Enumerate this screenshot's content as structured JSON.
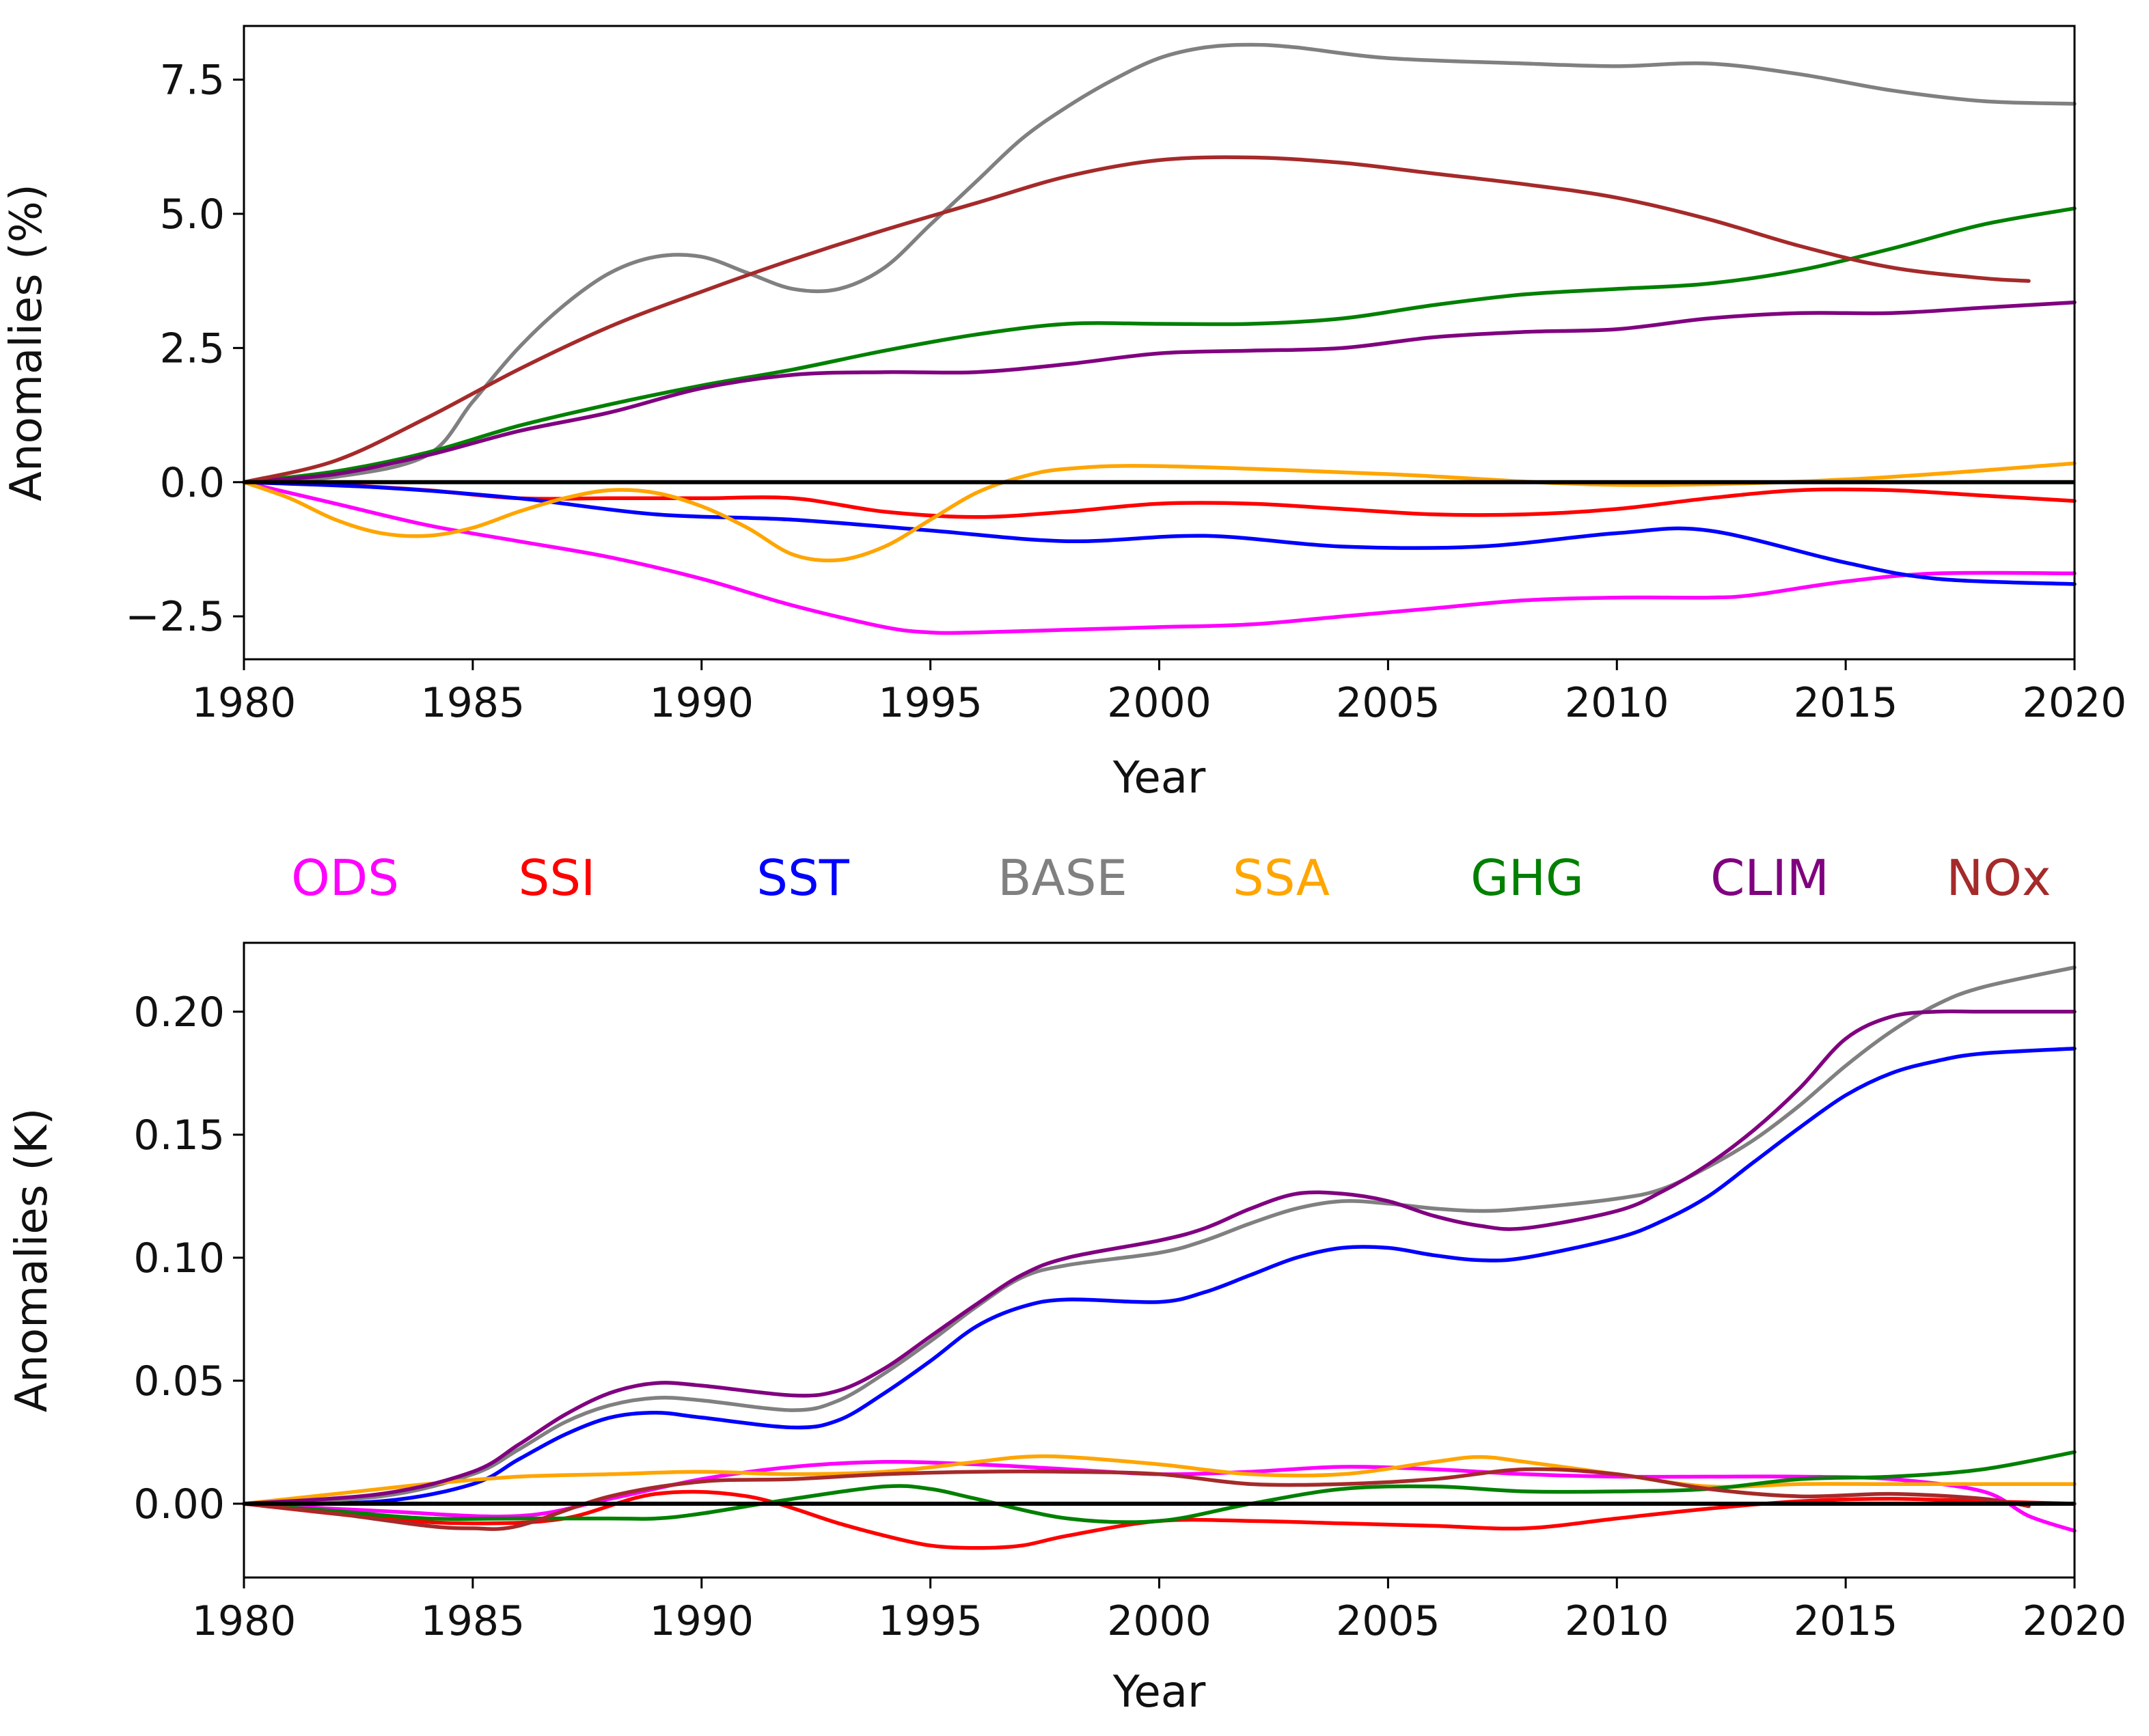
{
  "colors": {
    "ODS": "#ff00ff",
    "SSI": "#ff0000",
    "SST": "#0000ff",
    "BASE": "#808080",
    "SSA": "#ffa500",
    "GHG": "#008000",
    "CLIM": "#800080",
    "NOx": "#a52a2a"
  },
  "legend": {
    "items": [
      {
        "name": "ODS",
        "label": "ODS"
      },
      {
        "name": "SSI",
        "label": "SSI"
      },
      {
        "name": "SST",
        "label": "SST"
      },
      {
        "name": "BASE",
        "label": "BASE"
      },
      {
        "name": "SSA",
        "label": "SSA"
      },
      {
        "name": "GHG",
        "label": "GHG"
      },
      {
        "name": "CLIM",
        "label": "CLIM"
      },
      {
        "name": "NOx",
        "label": "NOx"
      }
    ]
  },
  "chart_data": [
    {
      "type": "line",
      "title": "",
      "xlabel": "Year",
      "ylabel": "Anomalies (%)",
      "xlim": [
        1980,
        2020
      ],
      "ylim": [
        -3.3,
        8.5
      ],
      "xticks": [
        1980,
        1985,
        1990,
        1995,
        2000,
        2005,
        2010,
        2015,
        2020
      ],
      "xtick_labels": [
        "1980",
        "1985",
        "1990",
        "1995",
        "2000",
        "2005",
        "2010",
        "2015",
        "2020"
      ],
      "yticks": [
        -2.5,
        0.0,
        2.5,
        5.0,
        7.5
      ],
      "ytick_labels": [
        "−2.5",
        "0.0",
        "2.5",
        "5.0",
        "7.5"
      ],
      "hline": 0,
      "series": [
        {
          "name": "ODS",
          "x": [
            1980,
            1982,
            1984,
            1986,
            1988,
            1990,
            1992,
            1994,
            1995,
            1996,
            1998,
            2000,
            2002,
            2004,
            2006,
            2008,
            2010,
            2012,
            2013,
            2015,
            2017,
            2020
          ],
          "values": [
            0,
            -0.4,
            -0.8,
            -1.1,
            -1.4,
            -1.8,
            -2.3,
            -2.7,
            -2.8,
            -2.8,
            -2.75,
            -2.7,
            -2.65,
            -2.5,
            -2.35,
            -2.2,
            -2.15,
            -2.15,
            -2.1,
            -1.85,
            -1.7,
            -1.7
          ]
        },
        {
          "name": "SSI",
          "x": [
            1980,
            1982,
            1984,
            1986,
            1988,
            1990,
            1992,
            1994,
            1996,
            1998,
            2000,
            2002,
            2004,
            2006,
            2008,
            2010,
            2012,
            2014,
            2016,
            2018,
            2020
          ],
          "values": [
            0,
            -0.05,
            -0.15,
            -0.3,
            -0.3,
            -0.3,
            -0.3,
            -0.55,
            -0.65,
            -0.55,
            -0.4,
            -0.4,
            -0.5,
            -0.6,
            -0.6,
            -0.5,
            -0.3,
            -0.15,
            -0.15,
            -0.25,
            -0.35
          ]
        },
        {
          "name": "SST",
          "x": [
            1980,
            1983,
            1986,
            1989,
            1992,
            1995,
            1998,
            2001,
            2004,
            2007,
            2010,
            2012,
            2015,
            2017,
            2020
          ],
          "values": [
            0,
            -0.1,
            -0.3,
            -0.6,
            -0.7,
            -0.9,
            -1.1,
            -1.0,
            -1.2,
            -1.2,
            -0.95,
            -0.9,
            -1.5,
            -1.8,
            -1.9
          ]
        },
        {
          "name": "BASE",
          "x": [
            1980,
            1982,
            1984,
            1985,
            1986,
            1987,
            1988,
            1989,
            1990,
            1991,
            1992,
            1993,
            1994,
            1995,
            1996,
            1997,
            1998,
            1999,
            2000,
            2001,
            2002,
            2003,
            2005,
            2008,
            2010,
            2012,
            2014,
            2016,
            2018,
            2020
          ],
          "values": [
            0,
            0.1,
            0.5,
            1.5,
            2.5,
            3.3,
            3.9,
            4.2,
            4.2,
            3.9,
            3.6,
            3.6,
            4.0,
            4.8,
            5.6,
            6.4,
            7.0,
            7.5,
            7.9,
            8.1,
            8.15,
            8.1,
            7.9,
            7.8,
            7.75,
            7.8,
            7.6,
            7.3,
            7.1,
            7.05
          ]
        },
        {
          "name": "SSA",
          "x": [
            1980,
            1981,
            1982,
            1983,
            1984,
            1985,
            1986,
            1987,
            1988,
            1989,
            1990,
            1991,
            1992,
            1993,
            1994,
            1995,
            1996,
            1997,
            1998,
            2000,
            2005,
            2010,
            2015,
            2020
          ],
          "values": [
            0,
            -0.3,
            -0.7,
            -0.95,
            -1.0,
            -0.85,
            -0.55,
            -0.3,
            -0.15,
            -0.2,
            -0.45,
            -0.85,
            -1.35,
            -1.45,
            -1.2,
            -0.7,
            -0.2,
            0.1,
            0.25,
            0.3,
            0.15,
            -0.05,
            0.05,
            0.35
          ]
        },
        {
          "name": "GHG",
          "x": [
            1980,
            1982,
            1984,
            1986,
            1988,
            1990,
            1992,
            1994,
            1996,
            1998,
            2000,
            2002,
            2004,
            2006,
            2008,
            2010,
            2012,
            2014,
            2016,
            2018,
            2020
          ],
          "values": [
            0,
            0.2,
            0.55,
            1.05,
            1.45,
            1.8,
            2.1,
            2.45,
            2.75,
            2.95,
            2.95,
            2.95,
            3.05,
            3.3,
            3.5,
            3.6,
            3.7,
            3.95,
            4.35,
            4.8,
            5.1
          ]
        },
        {
          "name": "CLIM",
          "x": [
            1980,
            1982,
            1984,
            1986,
            1988,
            1990,
            1992,
            1994,
            1996,
            1998,
            2000,
            2002,
            2004,
            2006,
            2008,
            2010,
            2012,
            2014,
            2016,
            2018,
            2020
          ],
          "values": [
            0,
            0.15,
            0.5,
            0.95,
            1.3,
            1.75,
            2.0,
            2.05,
            2.05,
            2.2,
            2.4,
            2.45,
            2.5,
            2.7,
            2.8,
            2.85,
            3.05,
            3.15,
            3.15,
            3.25,
            3.35
          ]
        },
        {
          "name": "NOx",
          "x": [
            1980,
            1982,
            1984,
            1986,
            1988,
            1990,
            1992,
            1994,
            1996,
            1998,
            2000,
            2002,
            2004,
            2006,
            2008,
            2010,
            2012,
            2014,
            2016,
            2018,
            2019
          ],
          "values": [
            0,
            0.4,
            1.2,
            2.1,
            2.9,
            3.55,
            4.15,
            4.7,
            5.2,
            5.7,
            6.0,
            6.05,
            5.95,
            5.75,
            5.55,
            5.3,
            4.9,
            4.4,
            4.0,
            3.8,
            3.75
          ]
        }
      ]
    },
    {
      "type": "line",
      "title": "",
      "xlabel": "Year",
      "ylabel": "Anomalies (K)",
      "xlim": [
        1980,
        2020
      ],
      "ylim": [
        -0.03,
        0.228
      ],
      "xticks": [
        1980,
        1985,
        1990,
        1995,
        2000,
        2005,
        2010,
        2015,
        2020
      ],
      "xtick_labels": [
        "1980",
        "1985",
        "1990",
        "1995",
        "2000",
        "2005",
        "2010",
        "2015",
        "2020"
      ],
      "yticks": [
        0.0,
        0.05,
        0.1,
        0.15,
        0.2
      ],
      "ytick_labels": [
        "0.00",
        "0.05",
        "0.10",
        "0.15",
        "0.20"
      ],
      "hline": 0,
      "series": [
        {
          "name": "ODS",
          "x": [
            1980,
            1983,
            1986,
            1988,
            1990,
            1992,
            1994,
            1996,
            1998,
            2000,
            2002,
            2004,
            2006,
            2008,
            2010,
            2012,
            2014,
            2016,
            2018,
            2019,
            2020
          ],
          "values": [
            0,
            -0.003,
            -0.005,
            0.002,
            0.01,
            0.015,
            0.017,
            0.016,
            0.014,
            0.012,
            0.013,
            0.015,
            0.014,
            0.012,
            0.011,
            0.011,
            0.011,
            0.01,
            0.005,
            -0.005,
            -0.011
          ]
        },
        {
          "name": "SSI",
          "x": [
            1980,
            1983,
            1985,
            1987,
            1989,
            1991,
            1993,
            1994,
            1995,
            1996,
            1997,
            1998,
            2000,
            2002,
            2004,
            2006,
            2008,
            2010,
            2012,
            2014,
            2016,
            2018,
            2020
          ],
          "values": [
            0,
            -0.006,
            -0.008,
            -0.006,
            0.004,
            0.003,
            -0.008,
            -0.013,
            -0.017,
            -0.018,
            -0.017,
            -0.013,
            -0.007,
            -0.007,
            -0.008,
            -0.009,
            -0.01,
            -0.006,
            -0.002,
            0.001,
            0.002,
            0.001,
            0
          ]
        },
        {
          "name": "SST",
          "x": [
            1980,
            1983,
            1985,
            1986,
            1987,
            1988,
            1989,
            1990,
            1992,
            1993,
            1994,
            1995,
            1996,
            1997,
            1998,
            2000,
            2001,
            2002,
            2003,
            2004,
            2005,
            2006,
            2007,
            2008,
            2010,
            2011,
            2012,
            2013,
            2014,
            2015,
            2016,
            2017,
            2018,
            2020
          ],
          "values": [
            0,
            0.001,
            0.008,
            0.018,
            0.028,
            0.035,
            0.037,
            0.035,
            0.031,
            0.034,
            0.045,
            0.058,
            0.072,
            0.08,
            0.083,
            0.082,
            0.086,
            0.093,
            0.1,
            0.104,
            0.104,
            0.101,
            0.099,
            0.1,
            0.108,
            0.115,
            0.125,
            0.139,
            0.153,
            0.166,
            0.175,
            0.18,
            0.183,
            0.185
          ]
        },
        {
          "name": "BASE",
          "x": [
            1980,
            1983,
            1985,
            1986,
            1987,
            1988,
            1989,
            1990,
            1992,
            1993,
            1994,
            1995,
            1996,
            1997,
            1998,
            2000,
            2001,
            2002,
            2003,
            2004,
            2005,
            2006,
            2007,
            2008,
            2010,
            2011,
            2012,
            2013,
            2014,
            2015,
            2016,
            2017,
            2018,
            2020
          ],
          "values": [
            0,
            0.003,
            0.012,
            0.022,
            0.033,
            0.04,
            0.043,
            0.042,
            0.038,
            0.042,
            0.053,
            0.066,
            0.08,
            0.092,
            0.097,
            0.102,
            0.107,
            0.114,
            0.12,
            0.123,
            0.122,
            0.12,
            0.119,
            0.12,
            0.124,
            0.128,
            0.137,
            0.148,
            0.162,
            0.178,
            0.192,
            0.203,
            0.21,
            0.218
          ]
        },
        {
          "name": "SSA",
          "x": [
            1980,
            1982,
            1984,
            1986,
            1988,
            1990,
            1992,
            1994,
            1996,
            1997,
            1998,
            2000,
            2002,
            2004,
            2006,
            2007,
            2008,
            2010,
            2012,
            2014,
            2016,
            2018,
            2020
          ],
          "values": [
            0,
            0.004,
            0.008,
            0.011,
            0.012,
            0.013,
            0.012,
            0.013,
            0.017,
            0.019,
            0.019,
            0.016,
            0.012,
            0.012,
            0.017,
            0.019,
            0.017,
            0.012,
            0.007,
            0.008,
            0.008,
            0.008,
            0.008
          ]
        },
        {
          "name": "GHG",
          "x": [
            1980,
            1982,
            1984,
            1986,
            1988,
            1989,
            1990,
            1992,
            1994,
            1995,
            1996,
            1998,
            2000,
            2002,
            2004,
            2006,
            2008,
            2010,
            2012,
            2014,
            2016,
            2018,
            2020
          ],
          "values": [
            0,
            -0.003,
            -0.006,
            -0.006,
            -0.006,
            -0.006,
            -0.004,
            0.002,
            0.007,
            0.006,
            0.002,
            -0.006,
            -0.007,
            0,
            0.006,
            0.007,
            0.005,
            0.005,
            0.006,
            0.01,
            0.011,
            0.014,
            0.021
          ]
        },
        {
          "name": "CLIM",
          "x": [
            1980,
            1983,
            1985,
            1986,
            1987,
            1988,
            1989,
            1990,
            1992,
            1993,
            1994,
            1995,
            1996,
            1997,
            1998,
            2000,
            2001,
            2002,
            2003,
            2004,
            2005,
            2006,
            2007,
            2008,
            2010,
            2011,
            2012,
            2013,
            2014,
            2015,
            2016,
            2017,
            2018,
            2020
          ],
          "values": [
            0,
            0.004,
            0.013,
            0.024,
            0.036,
            0.045,
            0.049,
            0.048,
            0.044,
            0.046,
            0.055,
            0.068,
            0.081,
            0.093,
            0.1,
            0.107,
            0.112,
            0.12,
            0.126,
            0.126,
            0.123,
            0.117,
            0.113,
            0.112,
            0.119,
            0.127,
            0.138,
            0.152,
            0.169,
            0.189,
            0.198,
            0.2,
            0.2,
            0.2
          ]
        },
        {
          "name": "NOx",
          "x": [
            1980,
            1982,
            1984,
            1985,
            1986,
            1988,
            1990,
            1992,
            1994,
            1996,
            1998,
            2000,
            2002,
            2004,
            2006,
            2008,
            2010,
            2012,
            2014,
            2016,
            2018,
            2019
          ],
          "values": [
            0,
            -0.004,
            -0.009,
            -0.01,
            -0.009,
            0.003,
            0.009,
            0.01,
            0.012,
            0.013,
            0.013,
            0.012,
            0.008,
            0.008,
            0.01,
            0.014,
            0.012,
            0.006,
            0.003,
            0.004,
            0.002,
            -0.001
          ]
        }
      ]
    }
  ]
}
